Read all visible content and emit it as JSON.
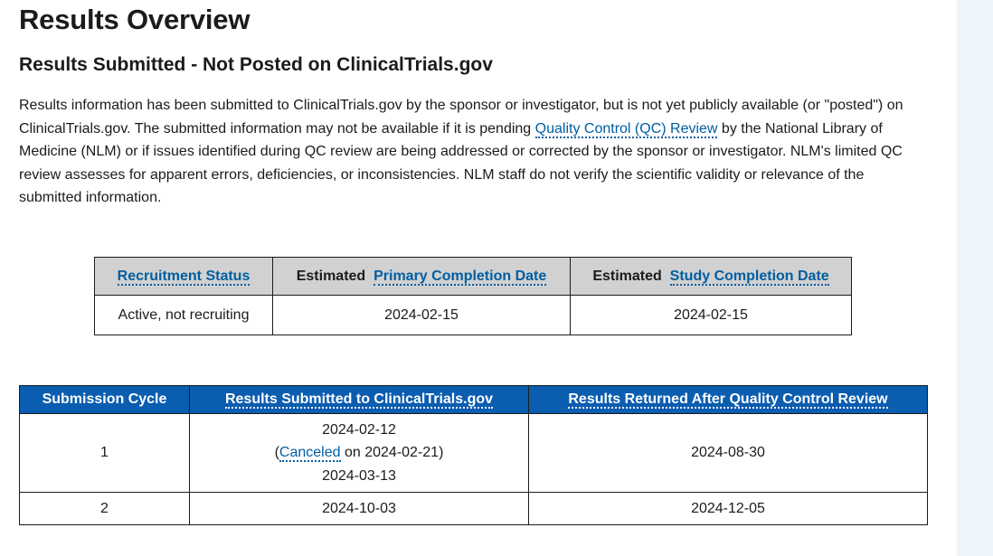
{
  "page": {
    "title": "Results Overview",
    "subtitle": "Results Submitted - Not Posted on ClinicalTrials.gov",
    "intro": {
      "part1": "Results information has been submitted to ClinicalTrials.gov by the sponsor or investigator, but is not yet publicly available (or \"posted\") on ClinicalTrials.gov. The submitted information may not be available if it is pending ",
      "link": "Quality Control (QC) Review",
      "part2": " by the National Library of Medicine (NLM) or if issues identified during QC review are being addressed or corrected by the sponsor or investigator. NLM's limited QC review assesses for apparent errors, deficiencies, or inconsistencies. NLM staff do not verify the scientific validity or relevance of the submitted information."
    }
  },
  "status_table": {
    "recruitment_header": "Recruitment Status",
    "primary_prefix": "Estimated",
    "primary_header": "Primary Completion Date",
    "study_prefix": "Estimated",
    "study_header": "Study Completion Date",
    "recruitment_value": "Active, not recruiting",
    "primary_value": "2024-02-15",
    "study_value": "2024-02-15"
  },
  "cycle_table": {
    "headers": {
      "cycle": "Submission Cycle",
      "submitted": "Results Submitted to ClinicalTrials.gov",
      "returned": "Results Returned After Quality Control Review"
    },
    "rows": [
      {
        "cycle": "1",
        "submitted_first": "2024-02-12",
        "canceled_open": "(",
        "canceled_link": "Canceled",
        "canceled_rest": " on 2024-02-21)",
        "submitted_second": "2024-03-13",
        "returned": "2024-08-30"
      },
      {
        "cycle": "2",
        "submitted": "2024-10-03",
        "returned": "2024-12-05"
      }
    ]
  },
  "colors": {
    "link": "#005ea2",
    "header_blue": "#0b5db0",
    "header_gray": "#d1d1d1",
    "side_panel": "#eef4fb"
  }
}
